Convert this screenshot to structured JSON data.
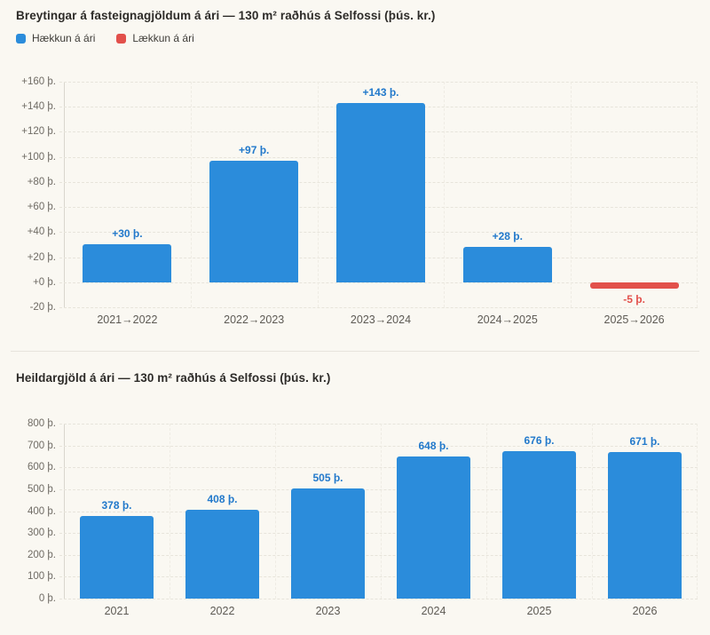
{
  "page": {
    "background": "#faf8f2"
  },
  "chart_data": [
    {
      "type": "bar",
      "title": "Breytingar á fasteignagjöldum á ári — 130 m² raðhús á Selfossi (þús. kr.)",
      "legend": [
        {
          "label": "Hækkun á ári",
          "color": "#2b8cdb"
        },
        {
          "label": "Lækkun á ári",
          "color": "#e2504b"
        }
      ],
      "legend_position": "top-left",
      "categories": [
        "2021→2022",
        "2022→2023",
        "2023→2024",
        "2024→2025",
        "2025→2026"
      ],
      "values": [
        30,
        97,
        143,
        28,
        -5
      ],
      "value_labels": [
        "+30 þ.",
        "+97 þ.",
        "+143 þ.",
        "+28 þ.",
        "-5 þ."
      ],
      "bar_colors": [
        "#2b8cdb",
        "#2b8cdb",
        "#2b8cdb",
        "#2b8cdb",
        "#e2504b"
      ],
      "label_colors": [
        "#2279cb",
        "#2279cb",
        "#2279cb",
        "#2279cb",
        "#e2504b"
      ],
      "xlabel": "",
      "ylabel": "",
      "ylim": [
        -20,
        160
      ],
      "ytick_values": [
        160,
        140,
        120,
        100,
        80,
        60,
        40,
        20,
        0,
        -20
      ],
      "ytick_labels": [
        "+160 þ.",
        "+140 þ.",
        "+120 þ.",
        "+100 þ.",
        "+80 þ.",
        "+60 þ.",
        "+40 þ.",
        "+20 þ.",
        "+0 þ.",
        "-20 þ."
      ],
      "grid": "dashed horizontal and vertical category separators"
    },
    {
      "type": "bar",
      "title": "Heildargjöld á ári — 130 m² raðhús á Selfossi (þús. kr.)",
      "categories": [
        "2021",
        "2022",
        "2023",
        "2024",
        "2025",
        "2026"
      ],
      "values": [
        378,
        408,
        505,
        648,
        676,
        671
      ],
      "value_labels": [
        "378 þ.",
        "408 þ.",
        "505 þ.",
        "648 þ.",
        "676 þ.",
        "671 þ."
      ],
      "bar_colors": [
        "#2b8cdb",
        "#2b8cdb",
        "#2b8cdb",
        "#2b8cdb",
        "#2b8cdb",
        "#2b8cdb"
      ],
      "label_colors": [
        "#2279cb",
        "#2279cb",
        "#2279cb",
        "#2279cb",
        "#2279cb",
        "#2279cb"
      ],
      "xlabel": "",
      "ylabel": "",
      "ylim": [
        0,
        800
      ],
      "ytick_values": [
        800,
        700,
        600,
        500,
        400,
        300,
        200,
        100,
        0
      ],
      "ytick_labels": [
        "800 þ.",
        "700 þ.",
        "600 þ.",
        "500 þ.",
        "400 þ.",
        "300 þ.",
        "200 þ.",
        "100 þ.",
        "0 þ."
      ],
      "grid": "dashed horizontal and vertical category separators"
    }
  ]
}
